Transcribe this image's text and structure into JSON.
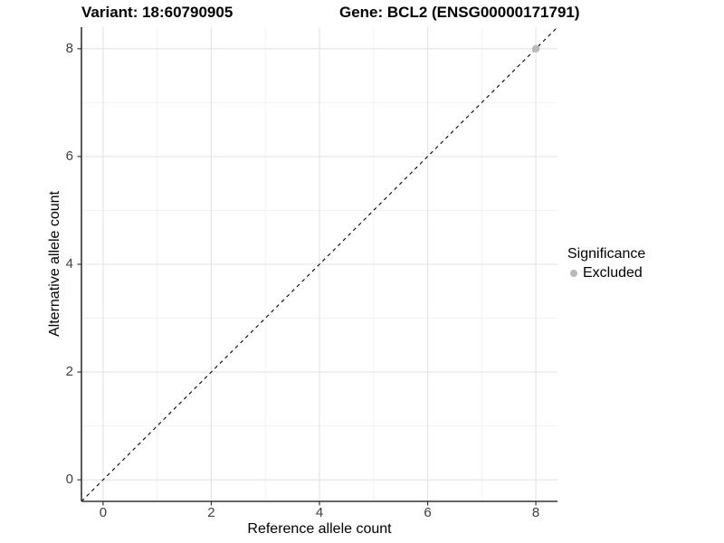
{
  "chart_data": {
    "type": "scatter",
    "title_left": "Variant: 18:60790905",
    "title_right": "Gene: BCL2 (ENSG00000171791)",
    "xlabel": "Reference allele count",
    "ylabel": "Alternative allele count",
    "xlim": [
      -0.4,
      8.4
    ],
    "ylim": [
      -0.4,
      8.4
    ],
    "x_ticks": [
      0,
      2,
      4,
      6,
      8
    ],
    "y_ticks": [
      0,
      2,
      4,
      6,
      8
    ],
    "x_minor_ticks": [
      1,
      3,
      5,
      7
    ],
    "y_minor_ticks": [
      1,
      3,
      5,
      7
    ],
    "grid": "on",
    "identity_line": {
      "slope": 1,
      "intercept": 0,
      "style": "dashed",
      "color": "#000000"
    },
    "series": [
      {
        "name": "Excluded",
        "color": "#b9b9b9",
        "points": [
          {
            "x": 8,
            "y": 8
          }
        ]
      }
    ],
    "legend": {
      "position": "right",
      "title": "Significance",
      "items": [
        {
          "label": "Excluded",
          "color": "#b9b9b9"
        }
      ]
    },
    "colors": {
      "grid_major": "#e4e4e4",
      "grid_minor": "#f2f2f2",
      "axis_line": "#333333",
      "axis_text": "#404040",
      "title_text": "#000000",
      "background": "#ffffff"
    }
  }
}
